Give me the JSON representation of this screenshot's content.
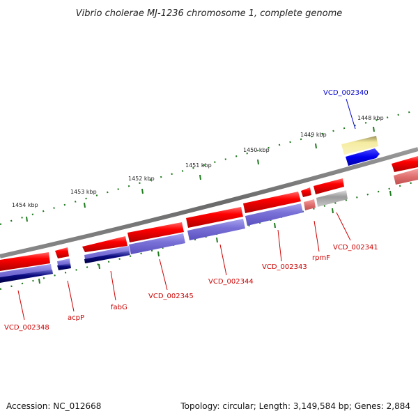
{
  "title": "Vibrio cholerae MJ-1236 chromosome 1, complete genome",
  "footer": {
    "accession": "Accession: NC_012668",
    "summary": "Topology: circular; Length: 3,149,584 bp; Genes: 2,884"
  },
  "ticks": [
    "1454 kbp",
    "1453 kbp",
    "1452 kbp",
    "1451 kbp",
    "1450 kbp",
    "1449 kbp",
    "1448 kbp"
  ],
  "gene_labels": [
    {
      "id": "vcd-002340",
      "text": "VCD_002340",
      "color": "#0000cc"
    },
    {
      "id": "vcd-002341",
      "text": "VCD_002341",
      "color": "#cc0000"
    },
    {
      "id": "rpmf",
      "text": "rpmF",
      "color": "#cc0000"
    },
    {
      "id": "vcd-002343",
      "text": "VCD_002343",
      "color": "#cc0000"
    },
    {
      "id": "vcd-002344",
      "text": "VCD_002344",
      "color": "#cc0000"
    },
    {
      "id": "vcd-002345",
      "text": "VCD_002345",
      "color": "#cc0000"
    },
    {
      "id": "fabg",
      "text": "fabG",
      "color": "#cc0000"
    },
    {
      "id": "acpp",
      "text": "acpP",
      "color": "#cc0000"
    },
    {
      "id": "vcd-002348",
      "text": "VCD_002348",
      "color": "#cc0000"
    }
  ],
  "colors": {
    "backbone": "#7f7f7f",
    "cds": "#ee0000",
    "gene_blue": "#1a1aee",
    "tick": "#1f7a1f",
    "label_line_red": "#cc0000",
    "label_line_blue": "#0000cc"
  }
}
